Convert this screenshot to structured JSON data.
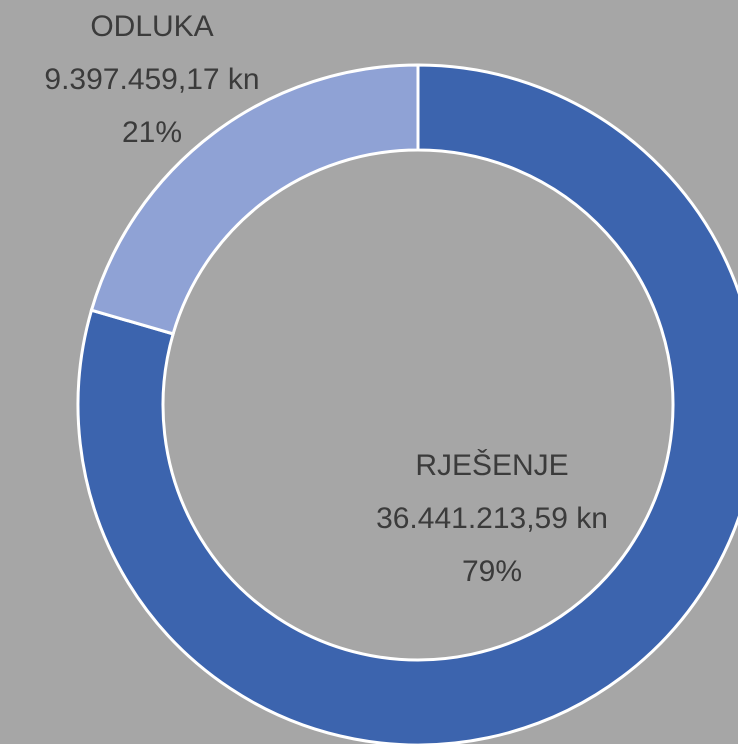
{
  "chart_data": {
    "type": "donut",
    "categories": [
      "RJEŠENJE",
      "ODLUKA"
    ],
    "values": [
      36441213.59,
      9397459.17
    ],
    "value_labels": [
      "36.441.213,59 kn",
      "9.397.459,17 kn"
    ],
    "percent_labels": [
      "79%",
      "21%"
    ],
    "colors": [
      "#3c64ae",
      "#8fa2d5"
    ]
  }
}
